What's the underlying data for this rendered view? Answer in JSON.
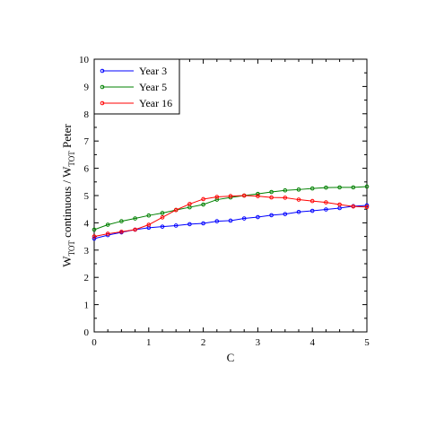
{
  "chart_data": {
    "type": "line",
    "xlabel": "C",
    "ylabel_parts": [
      {
        "t": "W",
        "sub": false
      },
      {
        "t": "TOT",
        "sub": true
      },
      {
        "t": " continuous / W",
        "sub": false
      },
      {
        "t": "TOT",
        "sub": true
      },
      {
        "t": " Peter",
        "sub": false
      }
    ],
    "xlim": [
      0,
      5
    ],
    "ylim": [
      0,
      10
    ],
    "xticks": [
      "0",
      "1",
      "2",
      "3",
      "4",
      "5"
    ],
    "yticks": [
      "0",
      "1",
      "2",
      "3",
      "4",
      "5",
      "6",
      "7",
      "8",
      "9",
      "10"
    ],
    "legend_position": "top-left",
    "grid": false,
    "series": [
      {
        "name": "Year 3",
        "color": "#0000ff",
        "x": [
          0,
          0.25,
          0.5,
          0.75,
          1,
          1.25,
          1.5,
          1.75,
          2,
          2.25,
          2.5,
          2.75,
          3,
          3.25,
          3.5,
          3.75,
          4,
          4.25,
          4.5,
          4.75,
          5
        ],
        "y": [
          3.42,
          3.55,
          3.65,
          3.75,
          3.82,
          3.86,
          3.9,
          3.95,
          3.98,
          4.06,
          4.08,
          4.16,
          4.21,
          4.28,
          4.32,
          4.4,
          4.44,
          4.49,
          4.54,
          4.61,
          4.64
        ]
      },
      {
        "name": "Year 5",
        "color": "#008000",
        "x": [
          0,
          0.25,
          0.5,
          0.75,
          1,
          1.25,
          1.5,
          1.75,
          2,
          2.25,
          2.5,
          2.75,
          3,
          3.25,
          3.5,
          3.75,
          4,
          4.25,
          4.5,
          4.75,
          5
        ],
        "y": [
          3.75,
          3.93,
          4.06,
          4.16,
          4.27,
          4.36,
          4.47,
          4.57,
          4.67,
          4.85,
          4.93,
          5.0,
          5.06,
          5.13,
          5.19,
          5.22,
          5.26,
          5.29,
          5.3,
          5.3,
          5.33
        ]
      },
      {
        "name": "Year 16",
        "color": "#ff0000",
        "x": [
          0,
          0.25,
          0.5,
          0.75,
          1,
          1.25,
          1.5,
          1.75,
          2,
          2.25,
          2.5,
          2.75,
          3,
          3.25,
          3.5,
          3.75,
          4,
          4.25,
          4.5,
          4.75,
          5
        ],
        "y": [
          3.5,
          3.6,
          3.67,
          3.75,
          3.93,
          4.2,
          4.47,
          4.69,
          4.87,
          4.95,
          4.98,
          5.0,
          4.98,
          4.93,
          4.92,
          4.85,
          4.8,
          4.75,
          4.67,
          4.6,
          4.58
        ]
      }
    ]
  }
}
